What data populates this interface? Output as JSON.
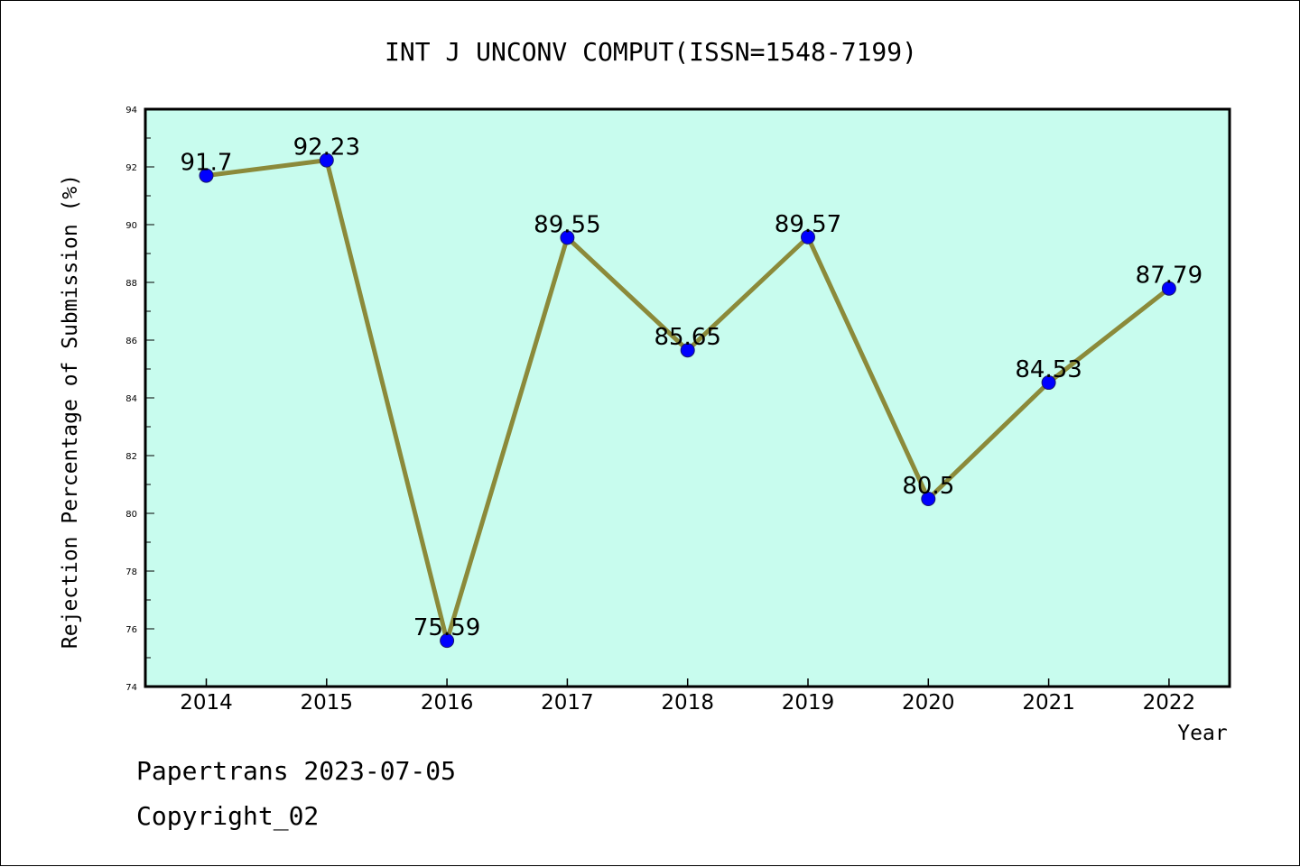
{
  "chart_data": {
    "type": "line",
    "title": "INT J UNCONV COMPUT(ISSN=1548-7199)",
    "xlabel": "Year",
    "ylabel": "Rejection Percentage of Submission (%)",
    "categories": [
      "2014",
      "2015",
      "2016",
      "2017",
      "2018",
      "2019",
      "2020",
      "2021",
      "2022"
    ],
    "series": [
      {
        "values": [
          91.7,
          92.23,
          75.59,
          89.55,
          85.65,
          89.57,
          80.5,
          84.53,
          87.79
        ],
        "labels": [
          "91.7",
          "92.23",
          "75.59",
          "89.55",
          "85.65",
          "89.57",
          "80.5",
          "84.53",
          "87.79"
        ]
      }
    ],
    "ylim": [
      74,
      94
    ],
    "yticks": [
      "74",
      "76",
      "78",
      "80",
      "82",
      "84",
      "86",
      "88",
      "90",
      "92",
      "94"
    ],
    "grid": false,
    "colors": {
      "plot_background": "#c8fcee",
      "line": "#8b8a3a",
      "marker": "#0000ff"
    }
  },
  "footer": {
    "line1": "Papertrans 2023-07-05",
    "line2": "Copyright_02"
  }
}
